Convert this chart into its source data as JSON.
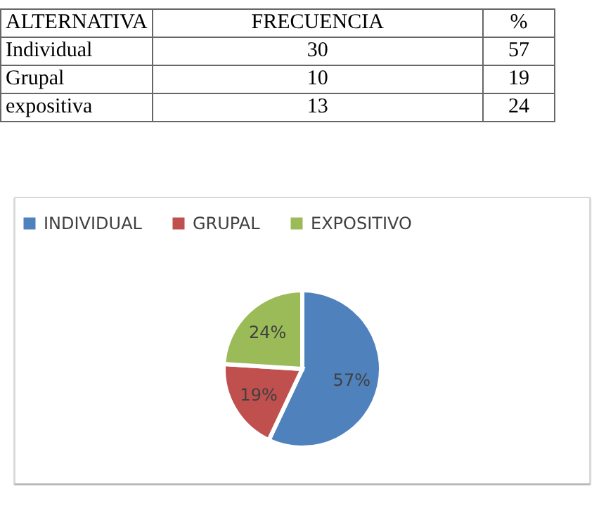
{
  "chart_data": [
    {
      "type": "other",
      "xlabel": "ALTERNATIVA",
      "categories": [
        "Individual",
        "Grupal",
        "expositiva"
      ],
      "series": [
        {
          "name": "FRECUENCIA",
          "values": [
            30,
            10,
            13
          ]
        },
        {
          "name": "%",
          "values": [
            57,
            19,
            24
          ]
        }
      ],
      "data_labels": true
    },
    {
      "type": "pie",
      "categories": [
        "INDIVIDUAL",
        "GRUPAL",
        "EXPOSITIVO"
      ],
      "values": [
        57,
        19,
        24
      ],
      "colors": [
        "#4f81bd",
        "#c0504d",
        "#9bbb59"
      ],
      "value_labels": [
        "57%",
        "19%",
        "24%"
      ],
      "legend": "top"
    }
  ]
}
